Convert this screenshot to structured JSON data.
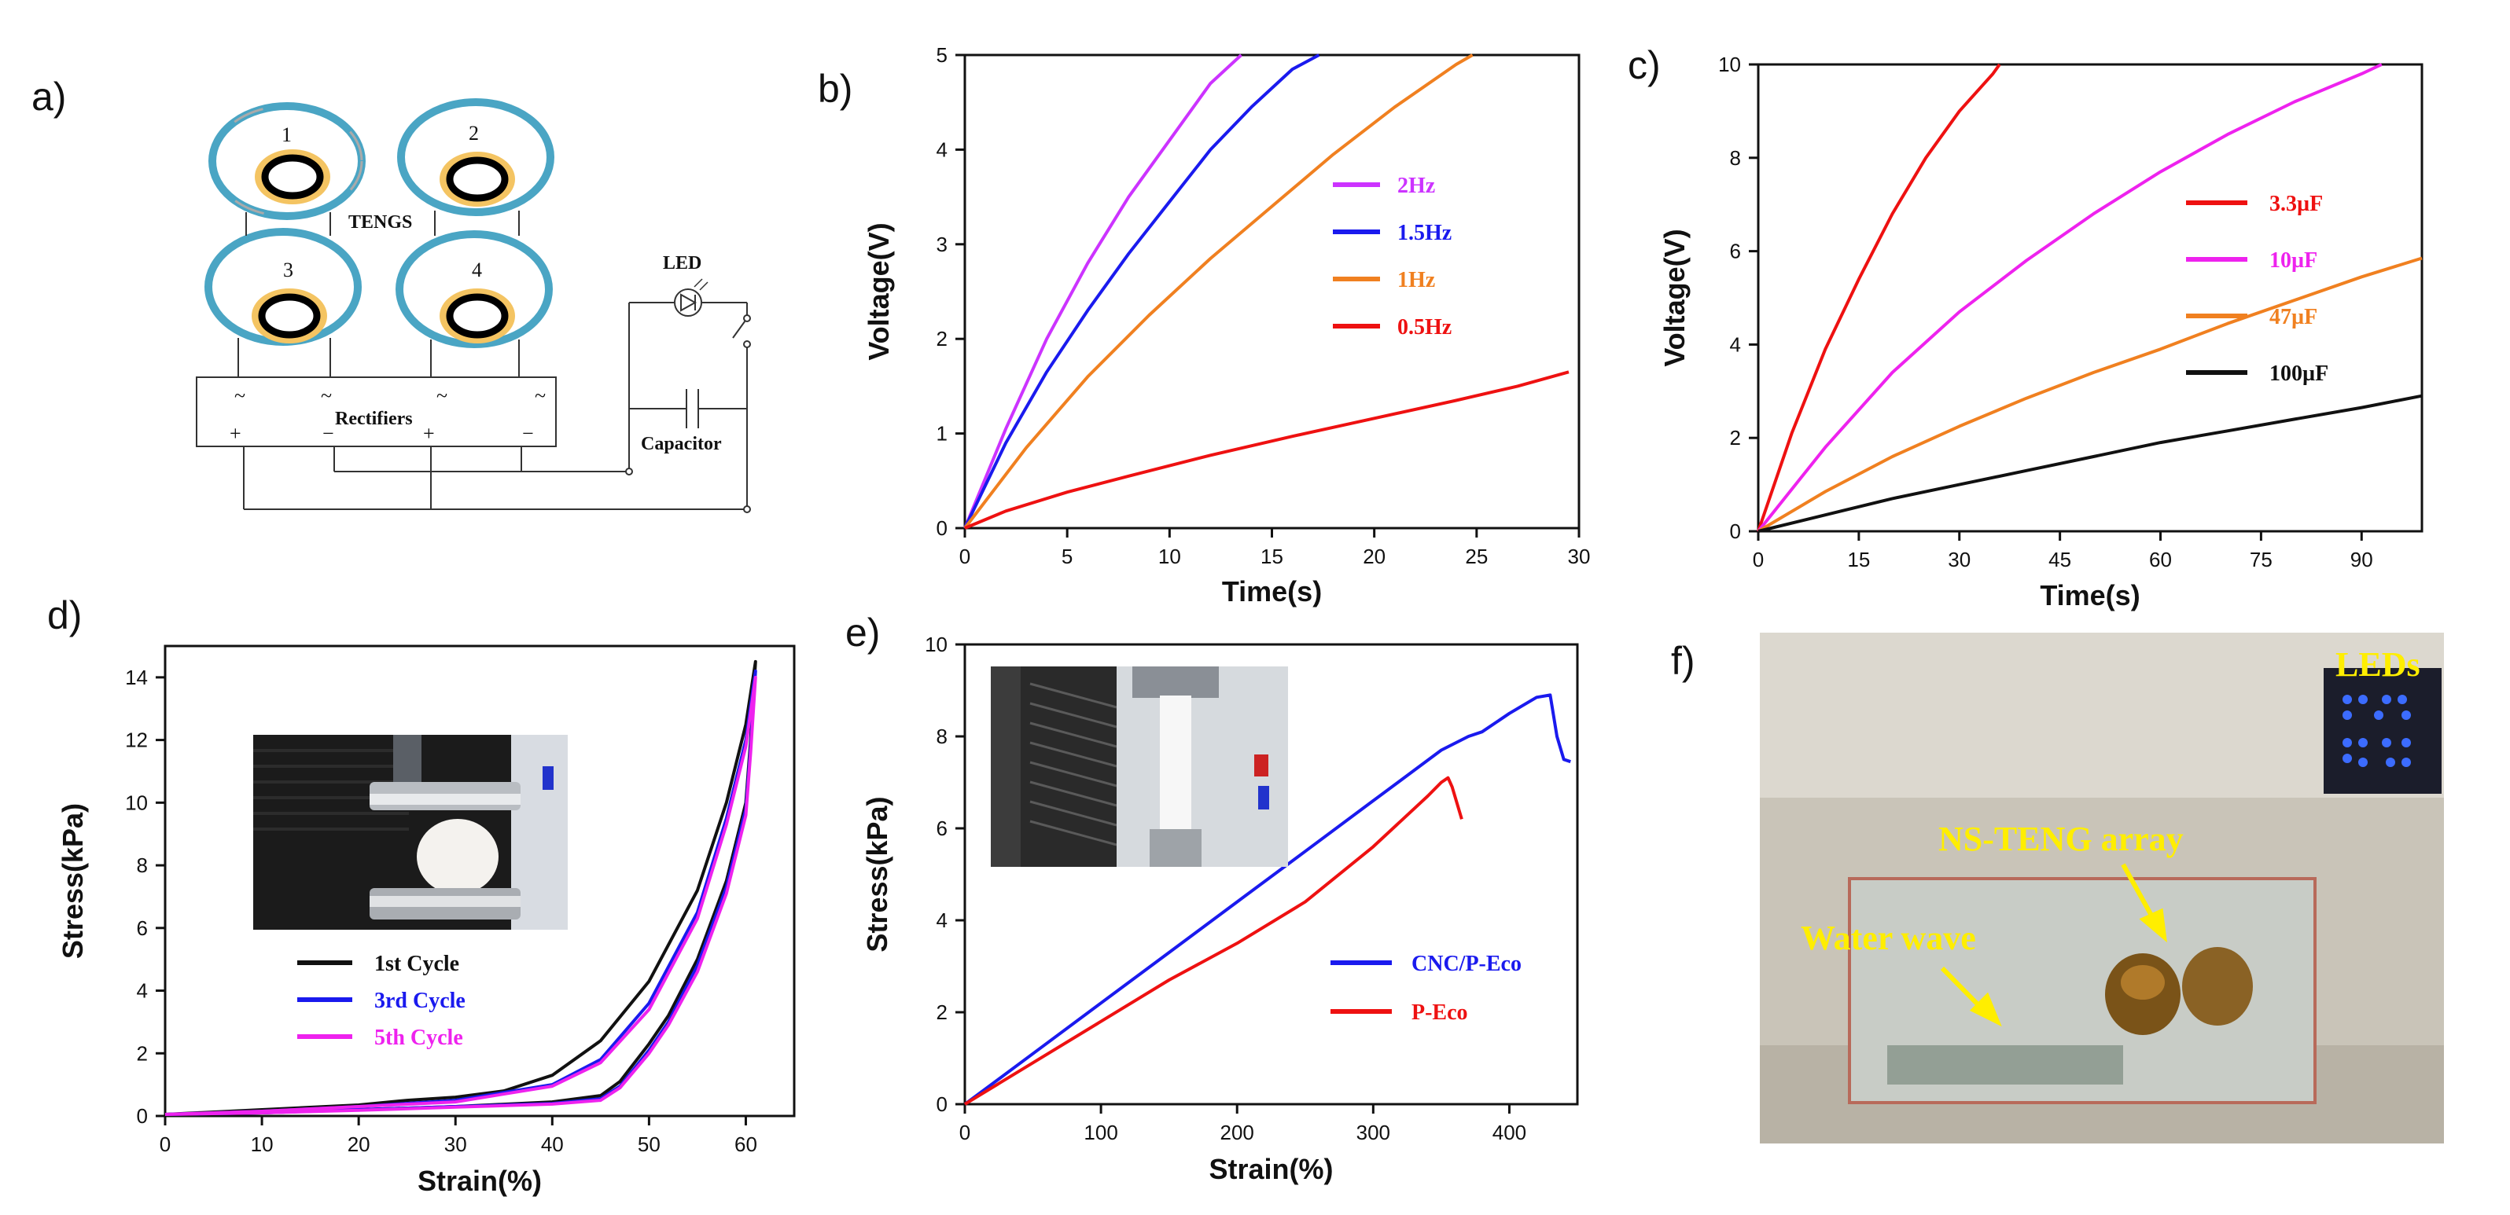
{
  "panels": {
    "a": "a)",
    "b": "b)",
    "c": "c)",
    "d": "d)",
    "e": "e)",
    "f": "f)"
  },
  "circuit": {
    "teng_numbers": [
      "1",
      "2",
      "3",
      "4"
    ],
    "tengs_label": "TENGS",
    "rectifier_label": "Rectifiers",
    "rectifier_signs": [
      "~",
      "~",
      "~",
      "~",
      "+",
      "−",
      "+",
      "−"
    ],
    "led_label": "LED",
    "capacitor_label": "Capacitor"
  },
  "chart_data": [
    {
      "id": "b",
      "type": "line",
      "xlabel": "Time(s)",
      "ylabel": "Voltage(V)",
      "xlim": [
        0,
        30
      ],
      "ylim": [
        0,
        5
      ],
      "xticks": [
        0,
        5,
        10,
        15,
        20,
        25,
        30
      ],
      "yticks": [
        0,
        1,
        2,
        3,
        4,
        5
      ],
      "series": [
        {
          "name": "2Hz",
          "color": "#cc33ff",
          "x": [
            0,
            2,
            4,
            6,
            8,
            10,
            12,
            13.5
          ],
          "y": [
            0,
            1.05,
            2.0,
            2.8,
            3.5,
            4.1,
            4.7,
            5.0
          ]
        },
        {
          "name": "1.5Hz",
          "color": "#1a1aee",
          "x": [
            0,
            2,
            4,
            6,
            8,
            10,
            12,
            14,
            16,
            17.3
          ],
          "y": [
            0,
            0.9,
            1.65,
            2.3,
            2.9,
            3.45,
            4.0,
            4.45,
            4.85,
            5.0
          ]
        },
        {
          "name": "1Hz",
          "color": "#f08020",
          "x": [
            0,
            3,
            6,
            9,
            12,
            15,
            18,
            21,
            24,
            24.8
          ],
          "y": [
            0,
            0.85,
            1.6,
            2.25,
            2.85,
            3.4,
            3.95,
            4.45,
            4.9,
            5.0
          ]
        },
        {
          "name": "0.5Hz",
          "color": "#ee1111",
          "x": [
            0,
            2,
            5,
            8,
            12,
            16,
            20,
            24,
            27,
            29.5
          ],
          "y": [
            0,
            0.18,
            0.38,
            0.55,
            0.77,
            0.97,
            1.16,
            1.35,
            1.5,
            1.65
          ]
        }
      ]
    },
    {
      "id": "c",
      "type": "line",
      "xlabel": "Time(s)",
      "ylabel": "Voltage(V)",
      "xlim": [
        0,
        99
      ],
      "ylim": [
        0,
        10
      ],
      "xticks": [
        0,
        15,
        30,
        45,
        60,
        75,
        90
      ],
      "yticks": [
        0,
        2,
        4,
        6,
        8,
        10
      ],
      "series": [
        {
          "name": "3.3µF",
          "color": "#ee1111",
          "x": [
            0,
            5,
            10,
            15,
            20,
            25,
            30,
            35,
            36
          ],
          "y": [
            0,
            2.1,
            3.9,
            5.4,
            6.8,
            8.0,
            9.0,
            9.8,
            10.0
          ]
        },
        {
          "name": "10µF",
          "color": "#ee22ee",
          "x": [
            0,
            10,
            20,
            30,
            40,
            50,
            60,
            70,
            80,
            90,
            93
          ],
          "y": [
            0,
            1.8,
            3.4,
            4.7,
            5.8,
            6.8,
            7.7,
            8.5,
            9.2,
            9.8,
            10.0
          ]
        },
        {
          "name": "47µF",
          "color": "#f08020",
          "x": [
            0,
            10,
            20,
            30,
            40,
            50,
            60,
            70,
            80,
            90,
            99
          ],
          "y": [
            0,
            0.85,
            1.6,
            2.25,
            2.85,
            3.4,
            3.9,
            4.45,
            4.95,
            5.45,
            5.85
          ]
        },
        {
          "name": "100µF",
          "color": "#111111",
          "x": [
            0,
            10,
            20,
            30,
            40,
            50,
            60,
            70,
            80,
            90,
            99
          ],
          "y": [
            0,
            0.35,
            0.7,
            1.0,
            1.3,
            1.6,
            1.9,
            2.15,
            2.4,
            2.65,
            2.9
          ]
        }
      ]
    },
    {
      "id": "d",
      "type": "line",
      "xlabel": "Strain(%)",
      "ylabel": "Stress(kPa)",
      "xlim": [
        0,
        65
      ],
      "ylim": [
        0,
        15
      ],
      "xticks": [
        0,
        10,
        20,
        30,
        40,
        50,
        60
      ],
      "yticks": [
        0,
        2,
        4,
        6,
        8,
        10,
        12,
        14
      ],
      "series": [
        {
          "name": "1st Cycle",
          "color": "#111111",
          "x": [
            0,
            10,
            20,
            25,
            30,
            35,
            40,
            45,
            50,
            55,
            58,
            60,
            61,
            60.5,
            60,
            58,
            55,
            52,
            50,
            47,
            45,
            40,
            30,
            20,
            10,
            0
          ],
          "y": [
            0.05,
            0.2,
            0.35,
            0.5,
            0.6,
            0.8,
            1.3,
            2.4,
            4.3,
            7.2,
            10.0,
            12.5,
            14.5,
            12.0,
            10.0,
            7.5,
            5.0,
            3.2,
            2.3,
            1.1,
            0.65,
            0.45,
            0.3,
            0.2,
            0.1,
            0.05
          ]
        },
        {
          "name": "3rd Cycle",
          "color": "#1a1aee",
          "x": [
            0,
            10,
            20,
            30,
            40,
            45,
            50,
            55,
            58,
            60,
            61,
            60.5,
            60,
            58,
            55,
            52,
            50,
            47,
            45,
            40,
            30,
            20,
            10,
            0
          ],
          "y": [
            0.05,
            0.15,
            0.3,
            0.5,
            1.0,
            1.8,
            3.6,
            6.5,
            9.5,
            12.0,
            14.2,
            11.8,
            9.8,
            7.3,
            4.8,
            3.0,
            2.1,
            0.95,
            0.55,
            0.4,
            0.3,
            0.2,
            0.1,
            0.05
          ]
        },
        {
          "name": "5th Cycle",
          "color": "#ee22ee",
          "x": [
            0,
            10,
            20,
            30,
            40,
            45,
            50,
            55,
            58,
            60,
            61,
            60.5,
            60,
            58,
            55,
            52,
            50,
            47,
            45,
            40,
            30,
            20,
            10,
            0
          ],
          "y": [
            0.05,
            0.15,
            0.3,
            0.45,
            0.95,
            1.7,
            3.4,
            6.3,
            9.3,
            11.8,
            14.0,
            11.6,
            9.6,
            7.1,
            4.6,
            2.9,
            2.0,
            0.9,
            0.5,
            0.38,
            0.28,
            0.18,
            0.1,
            0.05
          ]
        }
      ]
    },
    {
      "id": "e",
      "type": "line",
      "xlabel": "Strain(%)",
      "ylabel": "Stress(kPa)",
      "xlim": [
        0,
        450
      ],
      "ylim": [
        0,
        10
      ],
      "xticks": [
        0,
        100,
        200,
        300,
        400
      ],
      "yticks": [
        0,
        2,
        4,
        6,
        8,
        10
      ],
      "series": [
        {
          "name": "CNC/P-Eco",
          "color": "#1a1aee",
          "x": [
            0,
            50,
            100,
            150,
            200,
            250,
            300,
            350,
            370,
            380,
            400,
            420,
            430,
            435,
            440,
            445
          ],
          "y": [
            0,
            1.1,
            2.2,
            3.3,
            4.4,
            5.5,
            6.6,
            7.7,
            8.0,
            8.1,
            8.5,
            8.85,
            8.9,
            8.0,
            7.5,
            7.45
          ]
        },
        {
          "name": "P-Eco",
          "color": "#ee1111",
          "x": [
            0,
            50,
            100,
            150,
            200,
            250,
            300,
            340,
            350,
            355,
            358,
            362,
            365
          ],
          "y": [
            0,
            0.9,
            1.8,
            2.7,
            3.5,
            4.4,
            5.6,
            6.7,
            7.0,
            7.1,
            6.9,
            6.5,
            6.2
          ]
        }
      ]
    }
  ],
  "photos": {
    "f_leds": "LEDs",
    "f_array": "NS-TENG array",
    "f_wave": "Water wave"
  }
}
